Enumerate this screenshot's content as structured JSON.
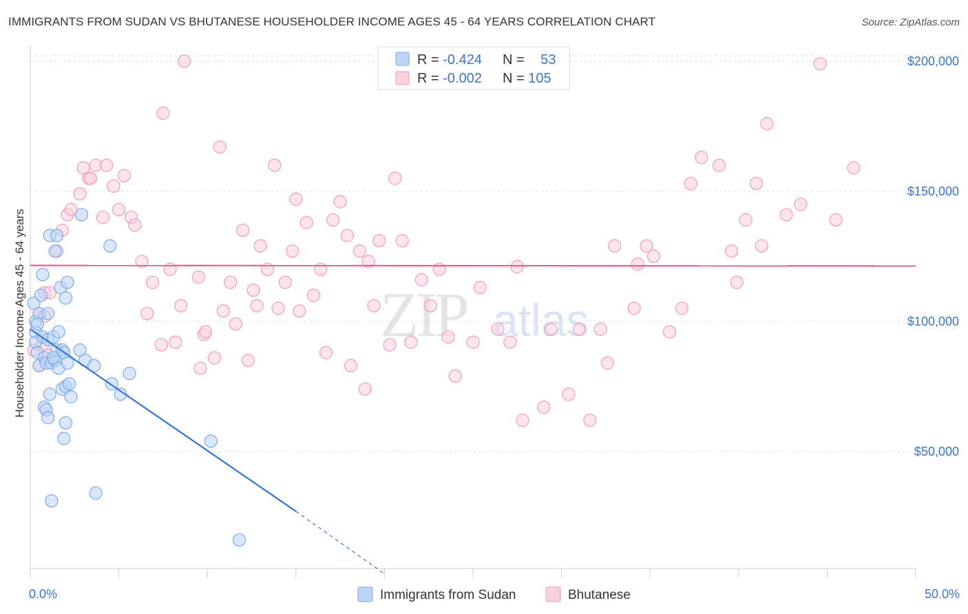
{
  "header": {
    "title": "IMMIGRANTS FROM SUDAN VS BHUTANESE HOUSEHOLDER INCOME AGES 45 - 64 YEARS CORRELATION CHART",
    "source": "Source: ZipAtlas.com"
  },
  "watermark": {
    "zip": "ZIP",
    "atlas": "atlas"
  },
  "colors": {
    "sudan": "#7aa9e8",
    "sudan_fill": "#bcd4f5",
    "sudan_line": "#2f74d0",
    "bhutanese": "#f09ab8",
    "bhutanese_fill": "#f9d0de",
    "bhutanese_line": "#e0608e",
    "tick_label": "#3b74c9"
  },
  "legend": {
    "rows": [
      {
        "r_label": "R = ",
        "r_value": "-0.424",
        "n_label": "N = ",
        "n_value": "53"
      },
      {
        "r_label": "R = ",
        "r_value": "-0.002",
        "n_label": "N = ",
        "n_value": "105"
      }
    ]
  },
  "chart_data": {
    "type": "scatter",
    "title": "IMMIGRANTS FROM SUDAN VS BHUTANESE HOUSEHOLDER INCOME AGES 45 - 64 YEARS CORRELATION CHART",
    "xlabel": "",
    "ylabel": "Householder Income Ages 45 - 64 years",
    "xlim": [
      0,
      50
    ],
    "ylim": [
      5000,
      205000
    ],
    "x_tick_labels": [
      "0.0%",
      "50.0%"
    ],
    "y_ticks": [
      50000,
      100000,
      150000,
      200000
    ],
    "y_tick_labels": [
      "$50,000",
      "$100,000",
      "$150,000",
      "$200,000"
    ],
    "grid": true,
    "legend_position": "top-center",
    "series": [
      {
        "name": "Immigrants from Sudan",
        "trend": {
          "x0": 0,
          "y0": 97000,
          "x1": 15,
          "y1": 27000,
          "dash_to_x": 20,
          "dash_to_y": 3000
        },
        "points": [
          [
            0.2,
            107000
          ],
          [
            0.3,
            96000
          ],
          [
            0.3,
            100000
          ],
          [
            0.3,
            92000
          ],
          [
            0.4,
            88000
          ],
          [
            0.5,
            103000
          ],
          [
            0.5,
            83000
          ],
          [
            0.6,
            110000
          ],
          [
            0.7,
            118000
          ],
          [
            0.7,
            94000
          ],
          [
            0.8,
            86000
          ],
          [
            0.8,
            67000
          ],
          [
            0.9,
            84000
          ],
          [
            0.9,
            66000
          ],
          [
            1.0,
            63000
          ],
          [
            1.0,
            103000
          ],
          [
            1.0,
            93000
          ],
          [
            1.1,
            133000
          ],
          [
            1.1,
            72000
          ],
          [
            1.2,
            84000
          ],
          [
            1.2,
            31000
          ],
          [
            1.3,
            94000
          ],
          [
            1.4,
            85000
          ],
          [
            1.4,
            127000
          ],
          [
            1.5,
            89000
          ],
          [
            1.5,
            133000
          ],
          [
            1.6,
            82000
          ],
          [
            1.6,
            96000
          ],
          [
            1.7,
            113000
          ],
          [
            1.8,
            74000
          ],
          [
            1.8,
            89000
          ],
          [
            1.9,
            55000
          ],
          [
            1.9,
            88000
          ],
          [
            2.0,
            75000
          ],
          [
            2.0,
            61000
          ],
          [
            2.0,
            109000
          ],
          [
            2.1,
            84000
          ],
          [
            2.1,
            115000
          ],
          [
            2.2,
            76000
          ],
          [
            2.3,
            71000
          ],
          [
            2.8,
            89000
          ],
          [
            2.9,
            141000
          ],
          [
            3.1,
            85000
          ],
          [
            3.6,
            83000
          ],
          [
            3.7,
            34000
          ],
          [
            4.5,
            129000
          ],
          [
            4.6,
            76000
          ],
          [
            5.1,
            72000
          ],
          [
            5.6,
            80000
          ],
          [
            10.2,
            54000
          ],
          [
            11.8,
            16000
          ],
          [
            0.4,
            99000
          ],
          [
            1.3,
            86000
          ]
        ]
      },
      {
        "name": "Bhutanese",
        "trend": {
          "x0": 0,
          "y0": 121500,
          "x1": 50,
          "y1": 121300
        },
        "points": [
          [
            0.2,
            89000
          ],
          [
            0.5,
            103000
          ],
          [
            0.5,
            83000
          ],
          [
            0.7,
            91000
          ],
          [
            0.8,
            102000
          ],
          [
            0.8,
            111000
          ],
          [
            1.0,
            87000
          ],
          [
            1.1,
            111000
          ],
          [
            1.5,
            127000
          ],
          [
            1.8,
            135000
          ],
          [
            2.1,
            141000
          ],
          [
            2.3,
            143000
          ],
          [
            2.8,
            149000
          ],
          [
            3.0,
            159000
          ],
          [
            3.3,
            155000
          ],
          [
            3.4,
            155000
          ],
          [
            3.7,
            160000
          ],
          [
            4.1,
            140000
          ],
          [
            4.3,
            160000
          ],
          [
            4.7,
            152000
          ],
          [
            5.0,
            143000
          ],
          [
            5.3,
            156000
          ],
          [
            5.7,
            140000
          ],
          [
            5.9,
            137000
          ],
          [
            6.3,
            123000
          ],
          [
            6.6,
            103000
          ],
          [
            6.9,
            115000
          ],
          [
            7.4,
            91000
          ],
          [
            7.5,
            180000
          ],
          [
            7.9,
            120000
          ],
          [
            8.2,
            92000
          ],
          [
            8.5,
            106000
          ],
          [
            8.7,
            200000
          ],
          [
            9.5,
            117000
          ],
          [
            9.6,
            82000
          ],
          [
            9.8,
            95000
          ],
          [
            9.9,
            96000
          ],
          [
            10.4,
            86000
          ],
          [
            10.7,
            167000
          ],
          [
            10.9,
            104000
          ],
          [
            11.3,
            115000
          ],
          [
            11.6,
            99000
          ],
          [
            12.0,
            135000
          ],
          [
            12.3,
            85000
          ],
          [
            12.6,
            112000
          ],
          [
            12.8,
            106000
          ],
          [
            13.0,
            129000
          ],
          [
            13.4,
            120000
          ],
          [
            13.8,
            160000
          ],
          [
            14.0,
            105000
          ],
          [
            14.4,
            115000
          ],
          [
            14.8,
            127000
          ],
          [
            15.0,
            147000
          ],
          [
            15.2,
            104000
          ],
          [
            15.6,
            138000
          ],
          [
            16.0,
            110000
          ],
          [
            16.4,
            120000
          ],
          [
            16.7,
            88000
          ],
          [
            17.1,
            139000
          ],
          [
            17.5,
            146000
          ],
          [
            17.9,
            133000
          ],
          [
            18.1,
            83000
          ],
          [
            18.6,
            127000
          ],
          [
            18.9,
            74000
          ],
          [
            19.1,
            123000
          ],
          [
            19.4,
            106000
          ],
          [
            19.7,
            131000
          ],
          [
            20.3,
            91000
          ],
          [
            20.6,
            155000
          ],
          [
            21.0,
            131000
          ],
          [
            21.5,
            92000
          ],
          [
            22.1,
            116000
          ],
          [
            22.6,
            106000
          ],
          [
            23.1,
            120000
          ],
          [
            23.6,
            94000
          ],
          [
            24.0,
            79000
          ],
          [
            25.0,
            92000
          ],
          [
            25.4,
            113000
          ],
          [
            26.4,
            97000
          ],
          [
            27.1,
            92000
          ],
          [
            27.5,
            121000
          ],
          [
            27.8,
            62000
          ],
          [
            29.0,
            67000
          ],
          [
            29.4,
            97000
          ],
          [
            30.4,
            72000
          ],
          [
            31.0,
            97000
          ],
          [
            31.6,
            62000
          ],
          [
            32.2,
            97000
          ],
          [
            32.6,
            84000
          ],
          [
            33.0,
            129000
          ],
          [
            34.1,
            105000
          ],
          [
            34.3,
            122000
          ],
          [
            34.8,
            129000
          ],
          [
            35.2,
            125000
          ],
          [
            36.1,
            96000
          ],
          [
            36.8,
            105000
          ],
          [
            37.3,
            153000
          ],
          [
            37.9,
            163000
          ],
          [
            38.9,
            160000
          ],
          [
            39.6,
            127000
          ],
          [
            39.9,
            115000
          ],
          [
            40.4,
            139000
          ],
          [
            41.0,
            153000
          ],
          [
            41.6,
            176000
          ],
          [
            42.7,
            141000
          ],
          [
            43.5,
            145000
          ],
          [
            44.6,
            199000
          ],
          [
            45.5,
            139000
          ],
          [
            46.5,
            159000
          ],
          [
            41.3,
            129000
          ]
        ]
      }
    ]
  },
  "bottom_legend": {
    "items": [
      {
        "label": "Immigrants from Sudan"
      },
      {
        "label": "Bhutanese"
      }
    ]
  }
}
